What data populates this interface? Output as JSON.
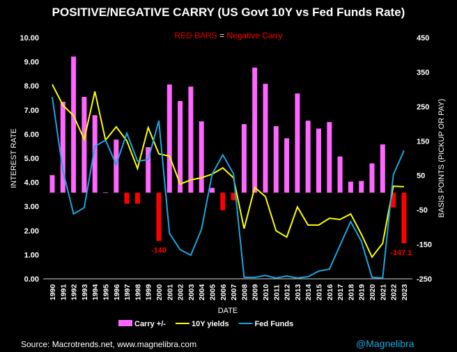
{
  "chart_data": {
    "type": "bar",
    "title": "POSITIVE/NEGATIVE CARRY (US Govt 10Y vs Fed Funds Rate)",
    "subtitle": {
      "part1": "RED BARS",
      "part2": " = ",
      "part3": "Negative Carry"
    },
    "xlabel": "DATE",
    "ylabel": "INTEREST RATE",
    "y2label": "BASIS POINTS (PICKUP OR PAY)",
    "ylim": [
      0,
      10
    ],
    "y2lim": [
      -250,
      450
    ],
    "yticks": [
      "0.00",
      "1.00",
      "2.00",
      "3.00",
      "4.00",
      "5.00",
      "6.00",
      "7.00",
      "8.00",
      "9.00",
      "10.00"
    ],
    "y2ticks": [
      "-250",
      "-150",
      "-50",
      "50",
      "150",
      "250",
      "350",
      "450"
    ],
    "categories": [
      "1990",
      "1991",
      "1992",
      "1993",
      "1994",
      "1995",
      "1996",
      "1997",
      "1998",
      "1999",
      "2000",
      "2001",
      "2002",
      "2003",
      "2004",
      "2005",
      "2006",
      "2007",
      "2008",
      "2009",
      "2010",
      "2011",
      "2012",
      "2013",
      "2014",
      "2015",
      "2016",
      "2017",
      "2018",
      "2019",
      "2020",
      "2021",
      "2022",
      "2023"
    ],
    "series": [
      {
        "name": "Carry +/-",
        "type": "bar",
        "axis": "right",
        "color": "#ff66ff",
        "negative_color": "#ff0000",
        "values": [
          51,
          264,
          395,
          278,
          225,
          1,
          154,
          -32,
          -32,
          132,
          -140,
          314,
          266,
          308,
          207,
          14,
          -51,
          -22,
          199,
          363,
          316,
          193,
          158,
          288,
          209,
          186,
          205,
          105,
          32,
          34,
          85,
          140,
          -43,
          -147.1
        ]
      },
      {
        "name": "10Y yields",
        "type": "line",
        "axis": "left",
        "color": "#ffff00",
        "values": [
          8.06,
          7.2,
          6.76,
          5.78,
          7.77,
          5.75,
          6.3,
          5.72,
          4.57,
          6.27,
          5.18,
          5.09,
          3.93,
          4.1,
          4.19,
          4.34,
          4.6,
          4.19,
          2.08,
          3.79,
          3.41,
          1.99,
          1.73,
          2.98,
          2.23,
          2.23,
          2.51,
          2.46,
          2.69,
          1.85,
          0.9,
          1.47,
          3.84,
          3.82
        ]
      },
      {
        "name": "Fed Funds",
        "type": "line",
        "axis": "left",
        "color": "#1aa7e0",
        "values": [
          7.54,
          4.48,
          2.69,
          2.95,
          5.49,
          5.75,
          4.74,
          6.04,
          4.88,
          4.94,
          6.56,
          1.88,
          1.21,
          0.98,
          2.05,
          4.34,
          5.14,
          4.36,
          0.06,
          0.06,
          0.14,
          0.03,
          0.12,
          0.03,
          0.09,
          0.32,
          0.4,
          1.39,
          2.37,
          1.56,
          0.06,
          0.03,
          4.31,
          5.32
        ]
      }
    ],
    "annotations": [
      "-140",
      "-147.1"
    ],
    "legend_position": "bottom",
    "grid": false
  },
  "footer": {
    "source": "Source: Macrotrends.net, www.magnelibra.com",
    "handle": "@Magnelibra"
  }
}
